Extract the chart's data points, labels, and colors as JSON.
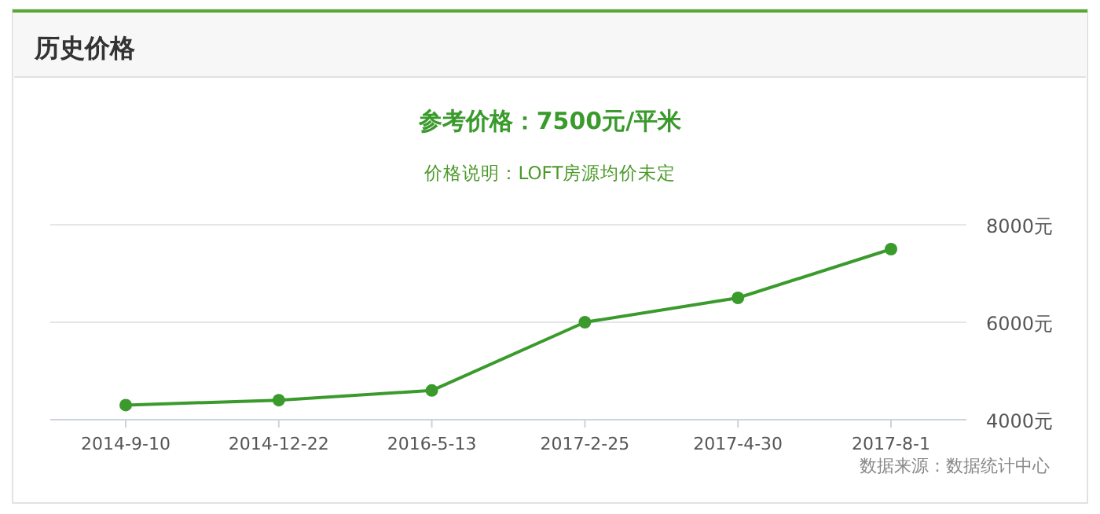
{
  "chart_data": {
    "type": "line",
    "title": "历史价格",
    "subtitle": "参考价格：7500元/平米",
    "annotations": [
      "价格说明：LOFT房源均价未定",
      "数据来源：数据统计中心"
    ],
    "categories": [
      "2014-9-10",
      "2014-12-22",
      "2016-5-13",
      "2017-2-25",
      "2017-4-30",
      "2017-8-1"
    ],
    "series": [
      {
        "color": "#3a9a2c",
        "values": [
          4300,
          4400,
          4600,
          6000,
          6500,
          7500
        ]
      }
    ],
    "ylim": [
      4000,
      8000
    ],
    "yticks": [
      {
        "value": 4000,
        "label": "4000元"
      },
      {
        "value": 6000,
        "label": "6000元"
      },
      {
        "value": 8000,
        "label": "8000元"
      }
    ],
    "grid": "y",
    "marker": "circle",
    "line_style": "solid"
  }
}
